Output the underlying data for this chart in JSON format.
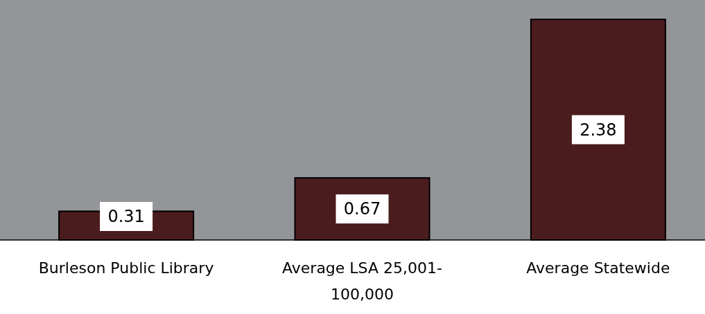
{
  "chart_data": {
    "type": "bar",
    "categories": [
      "Burleson Public Library",
      "Average LSA 25,001-100,000",
      "Average Statewide"
    ],
    "values": [
      0.31,
      0.67,
      2.38
    ],
    "color": "#4a1c1e",
    "data_labels": true
  }
}
